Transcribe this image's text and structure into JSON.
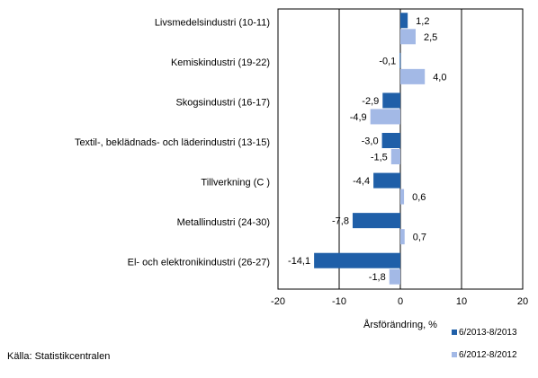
{
  "chart_data": {
    "type": "bar",
    "orientation": "horizontal",
    "categories": [
      "Livsmedelsindustri (10-11)",
      "Kemiskindustri (19-22)",
      "Skogsindustri (16-17)",
      "Textil-, beklädnads- och läderindustri (13-15)",
      "Tillverkning (C )",
      "Metallindustri (24-30)",
      "El- och elektronikindustri (26-27)"
    ],
    "series": [
      {
        "name": "6/2013-8/2013",
        "color": "#1f5fa8",
        "values": [
          1.2,
          -0.1,
          -2.9,
          -3.0,
          -4.4,
          -7.8,
          -14.1
        ],
        "labels": [
          "1,2",
          "-0,1",
          "-2,9",
          "-3,0",
          "-4,4",
          "-7,8",
          "-14,1"
        ]
      },
      {
        "name": "6/2012-8/2012",
        "color": "#a3b9e6",
        "values": [
          2.5,
          4.0,
          -4.9,
          -1.5,
          0.6,
          0.7,
          -1.8
        ],
        "labels": [
          "2,5",
          "4,0",
          "-4,9",
          "-1,5",
          "0,6",
          "0,7",
          "-1,8"
        ]
      }
    ],
    "xlim": [
      -20,
      20
    ],
    "xticks": [
      -20,
      -10,
      0,
      10,
      20
    ],
    "xtick_labels": [
      "-20",
      "-10",
      "0",
      "10",
      "20"
    ],
    "xlabel": "Årsförändring, %",
    "grid": "vertical",
    "legend_position": "bottom-right"
  },
  "source": "Källa: Statistikcentralen"
}
